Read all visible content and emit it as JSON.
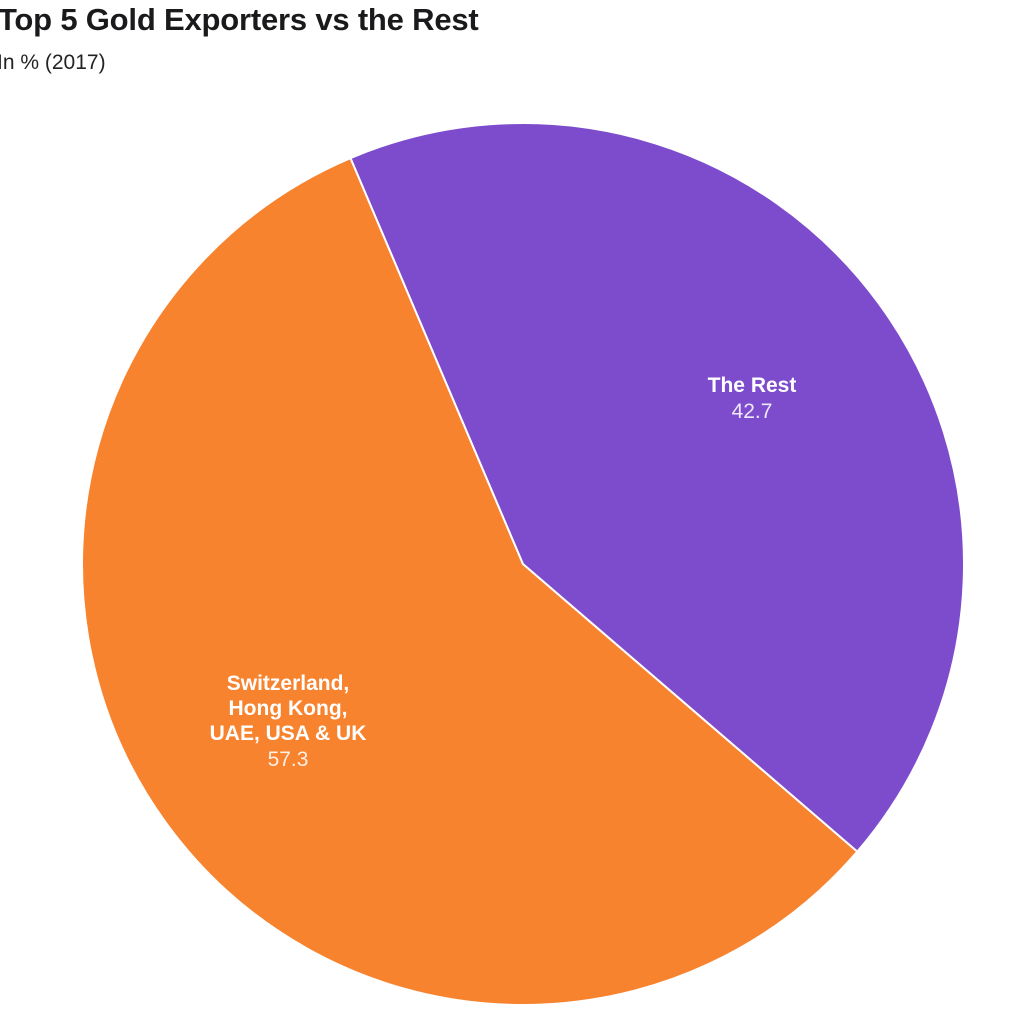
{
  "chart_data": {
    "type": "pie",
    "title": "Top 5 Gold Exporters vs the Rest",
    "subtitle": "In % (2017)",
    "unit": "%",
    "year": "2017",
    "slices": [
      {
        "label": "Switzerland, Hong Kong, UAE, USA & UK",
        "value": 57.3,
        "color": "#f8832e"
      },
      {
        "label": "The Rest",
        "value": 42.7,
        "color": "#7d4ccd"
      }
    ],
    "start_angle_deg": 130.7,
    "slice_border_color": "#ffffff",
    "background_color": "#ffffff",
    "label_position": "inside",
    "legend": "none"
  }
}
